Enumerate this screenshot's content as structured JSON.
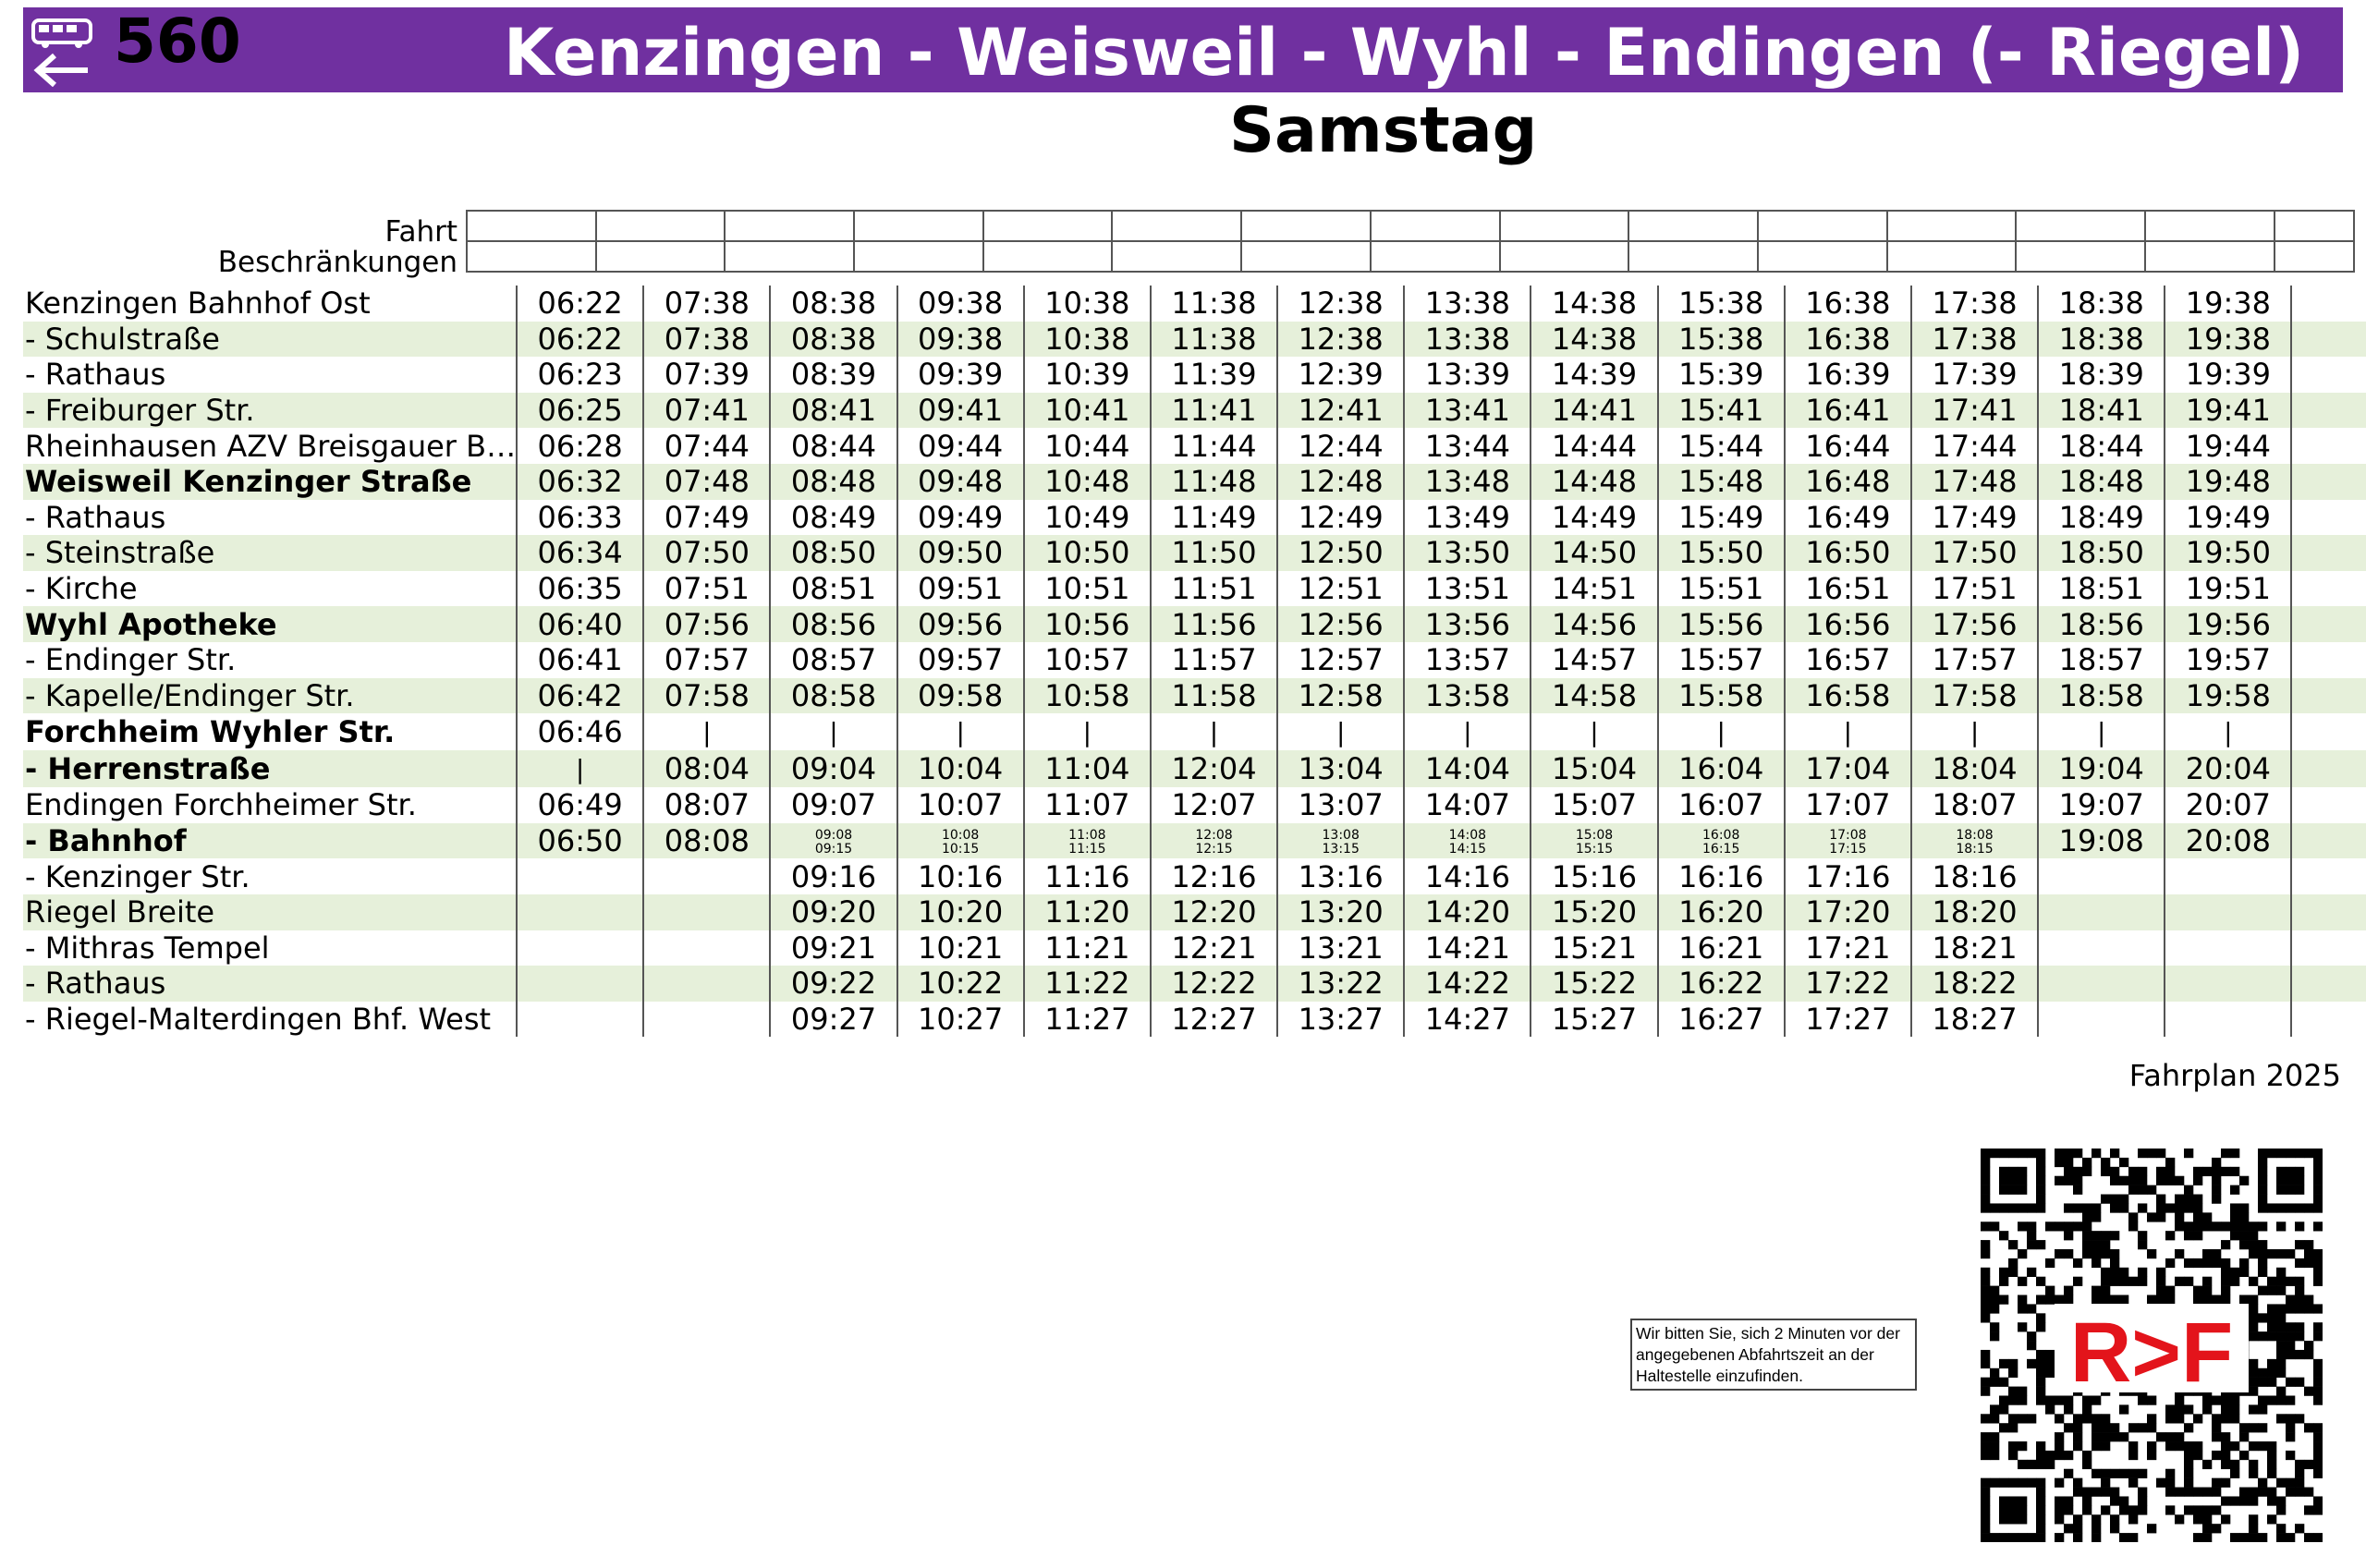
{
  "header": {
    "route_number": "560",
    "title": "Kenzingen - Weisweil - Wyhl - Endingen (- Riegel)",
    "day": "Samstag",
    "bus_icon": "bus-arrow-left-icon",
    "background_color": "#7030a0"
  },
  "row_labels": {
    "fahrt": "Fahrt",
    "restrictions": "Beschränkungen"
  },
  "stops": [
    {
      "name": "Kenzingen Bahnhof Ost",
      "bold": false,
      "times": [
        "06:22",
        "07:38",
        "08:38",
        "09:38",
        "10:38",
        "11:38",
        "12:38",
        "13:38",
        "14:38",
        "15:38",
        "16:38",
        "17:38",
        "18:38",
        "19:38"
      ]
    },
    {
      "name": "- Schulstraße",
      "bold": false,
      "times": [
        "06:22",
        "07:38",
        "08:38",
        "09:38",
        "10:38",
        "11:38",
        "12:38",
        "13:38",
        "14:38",
        "15:38",
        "16:38",
        "17:38",
        "18:38",
        "19:38"
      ]
    },
    {
      "name": "- Rathaus",
      "bold": false,
      "times": [
        "06:23",
        "07:39",
        "08:39",
        "09:39",
        "10:39",
        "11:39",
        "12:39",
        "13:39",
        "14:39",
        "15:39",
        "16:39",
        "17:39",
        "18:39",
        "19:39"
      ]
    },
    {
      "name": "- Freiburger Str.",
      "bold": false,
      "times": [
        "06:25",
        "07:41",
        "08:41",
        "09:41",
        "10:41",
        "11:41",
        "12:41",
        "13:41",
        "14:41",
        "15:41",
        "16:41",
        "17:41",
        "18:41",
        "19:41"
      ]
    },
    {
      "name": "Rheinhausen AZV Breisgauer B…",
      "bold": false,
      "times": [
        "06:28",
        "07:44",
        "08:44",
        "09:44",
        "10:44",
        "11:44",
        "12:44",
        "13:44",
        "14:44",
        "15:44",
        "16:44",
        "17:44",
        "18:44",
        "19:44"
      ]
    },
    {
      "name": "Weisweil Kenzinger Straße",
      "bold": true,
      "times": [
        "06:32",
        "07:48",
        "08:48",
        "09:48",
        "10:48",
        "11:48",
        "12:48",
        "13:48",
        "14:48",
        "15:48",
        "16:48",
        "17:48",
        "18:48",
        "19:48"
      ]
    },
    {
      "name": "- Rathaus",
      "bold": false,
      "times": [
        "06:33",
        "07:49",
        "08:49",
        "09:49",
        "10:49",
        "11:49",
        "12:49",
        "13:49",
        "14:49",
        "15:49",
        "16:49",
        "17:49",
        "18:49",
        "19:49"
      ]
    },
    {
      "name": "- Steinstraße",
      "bold": false,
      "times": [
        "06:34",
        "07:50",
        "08:50",
        "09:50",
        "10:50",
        "11:50",
        "12:50",
        "13:50",
        "14:50",
        "15:50",
        "16:50",
        "17:50",
        "18:50",
        "19:50"
      ]
    },
    {
      "name": "- Kirche",
      "bold": false,
      "times": [
        "06:35",
        "07:51",
        "08:51",
        "09:51",
        "10:51",
        "11:51",
        "12:51",
        "13:51",
        "14:51",
        "15:51",
        "16:51",
        "17:51",
        "18:51",
        "19:51"
      ]
    },
    {
      "name": "Wyhl Apotheke",
      "bold": true,
      "times": [
        "06:40",
        "07:56",
        "08:56",
        "09:56",
        "10:56",
        "11:56",
        "12:56",
        "13:56",
        "14:56",
        "15:56",
        "16:56",
        "17:56",
        "18:56",
        "19:56"
      ]
    },
    {
      "name": "- Endinger Str.",
      "bold": false,
      "times": [
        "06:41",
        "07:57",
        "08:57",
        "09:57",
        "10:57",
        "11:57",
        "12:57",
        "13:57",
        "14:57",
        "15:57",
        "16:57",
        "17:57",
        "18:57",
        "19:57"
      ]
    },
    {
      "name": "- Kapelle/Endinger Str.",
      "bold": false,
      "times": [
        "06:42",
        "07:58",
        "08:58",
        "09:58",
        "10:58",
        "11:58",
        "12:58",
        "13:58",
        "14:58",
        "15:58",
        "16:58",
        "17:58",
        "18:58",
        "19:58"
      ]
    },
    {
      "name": "Forchheim Wyhler Str.",
      "bold": true,
      "times": [
        "06:46",
        "|",
        "|",
        "|",
        "|",
        "|",
        "|",
        "|",
        "|",
        "|",
        "|",
        "|",
        "|",
        "|"
      ]
    },
    {
      "name": "- Herrenstraße",
      "bold": true,
      "times": [
        "|",
        "08:04",
        "09:04",
        "10:04",
        "11:04",
        "12:04",
        "13:04",
        "14:04",
        "15:04",
        "16:04",
        "17:04",
        "18:04",
        "19:04",
        "20:04"
      ]
    },
    {
      "name": "Endingen Forchheimer Str.",
      "bold": false,
      "times": [
        "06:49",
        "08:07",
        "09:07",
        "10:07",
        "11:07",
        "12:07",
        "13:07",
        "14:07",
        "15:07",
        "16:07",
        "17:07",
        "18:07",
        "19:07",
        "20:07"
      ]
    },
    {
      "name": "- Bahnhof",
      "bold": true,
      "times": [
        "06:50",
        "08:08",
        "09:08 09:15",
        "10:08 10:15",
        "11:08 11:15",
        "12:08 12:15",
        "13:08 13:15",
        "14:08 14:15",
        "15:08 15:15",
        "16:08 16:15",
        "17:08 17:15",
        "18:08 18:15",
        "19:08",
        "20:08"
      ]
    },
    {
      "name": "- Kenzinger Str.",
      "bold": false,
      "times": [
        "",
        "",
        "09:16",
        "10:16",
        "11:16",
        "12:16",
        "13:16",
        "14:16",
        "15:16",
        "16:16",
        "17:16",
        "18:16",
        "",
        ""
      ]
    },
    {
      "name": "Riegel Breite",
      "bold": false,
      "times": [
        "",
        "",
        "09:20",
        "10:20",
        "11:20",
        "12:20",
        "13:20",
        "14:20",
        "15:20",
        "16:20",
        "17:20",
        "18:20",
        "",
        ""
      ]
    },
    {
      "name": "- Mithras Tempel",
      "bold": false,
      "times": [
        "",
        "",
        "09:21",
        "10:21",
        "11:21",
        "12:21",
        "13:21",
        "14:21",
        "15:21",
        "16:21",
        "17:21",
        "18:21",
        "",
        ""
      ]
    },
    {
      "name": "- Rathaus",
      "bold": false,
      "times": [
        "",
        "",
        "09:22",
        "10:22",
        "11:22",
        "12:22",
        "13:22",
        "14:22",
        "15:22",
        "16:22",
        "17:22",
        "18:22",
        "",
        ""
      ]
    },
    {
      "name": "- Riegel-Malterdingen Bhf. West",
      "bold": false,
      "times": [
        "",
        "",
        "09:27",
        "10:27",
        "11:27",
        "12:27",
        "13:27",
        "14:27",
        "15:27",
        "16:27",
        "17:27",
        "18:27",
        "",
        ""
      ]
    }
  ],
  "footer": {
    "fahrplan": "Fahrplan 2025",
    "notice": "Wir bitten Sie, sich 2 Minuten vor der angegebenen Abfahrtszeit an der Haltestelle einzufinden.",
    "logo_text": "R>F",
    "qr_icon": "qr-code-icon",
    "logo_color": "#e3141b"
  }
}
